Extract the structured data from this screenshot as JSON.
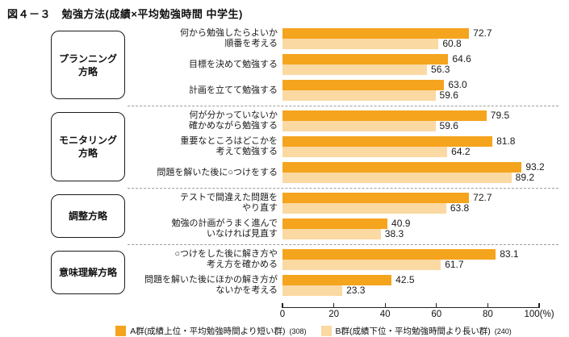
{
  "title": "図４－３　勉強方法(成績×平均勉強時間 中学生)",
  "colors": {
    "series_a": "#F5A41E",
    "series_b": "#FBD9A3",
    "dashed_line": "#9D9D9D"
  },
  "axis": {
    "ticks": [
      "0",
      "20",
      "40",
      "60",
      "80",
      "100(%)"
    ],
    "min": 0,
    "max": 100
  },
  "legend": [
    {
      "label": "A群(成績上位・平均勉強時間より短い群)",
      "count": "(308)",
      "color": "#F5A41E"
    },
    {
      "label": "B群(成績下位・平均勉強時間より長い群)",
      "count": "(240)",
      "color": "#FBD9A3"
    }
  ],
  "groups": [
    {
      "label_lines": [
        "プランニング",
        "方略"
      ],
      "items": [
        {
          "label_lines": [
            "何から勉強したらよいか",
            "順番を考える"
          ],
          "values": {
            "a": "72.7",
            "b": "60.8"
          }
        },
        {
          "label_lines": [
            "目標を決めて勉強する"
          ],
          "values": {
            "a": "64.6",
            "b": "56.3"
          }
        },
        {
          "label_lines": [
            "計画を立てて勉強する"
          ],
          "values": {
            "a": "63.0",
            "b": "59.6"
          }
        }
      ]
    },
    {
      "label_lines": [
        "モニタリング",
        "方略"
      ],
      "items": [
        {
          "label_lines": [
            "何が分かっていないか",
            "確かめながら勉強する"
          ],
          "values": {
            "a": "79.5",
            "b": "59.6"
          }
        },
        {
          "label_lines": [
            "重要なところはどこかを",
            "考えて勉強する"
          ],
          "values": {
            "a": "81.8",
            "b": "64.2"
          }
        },
        {
          "label_lines": [
            "問題を解いた後に○つけをする"
          ],
          "values": {
            "a": "93.2",
            "b": "89.2"
          }
        }
      ]
    },
    {
      "label_lines": [
        "調整方略"
      ],
      "items": [
        {
          "label_lines": [
            "テストで間違えた問題を",
            "やり直す"
          ],
          "values": {
            "a": "72.7",
            "b": "63.8"
          }
        },
        {
          "label_lines": [
            "勉強の計画がうまく進んで",
            "いなければ見直す"
          ],
          "values": {
            "a": "40.9",
            "b": "38.3"
          }
        }
      ]
    },
    {
      "label_lines": [
        "意味理解方略"
      ],
      "items": [
        {
          "label_lines": [
            "○つけをした後に解き方や",
            "考え方を確かめる"
          ],
          "values": {
            "a": "83.1",
            "b": "61.7"
          }
        },
        {
          "label_lines": [
            "問題を解いた後にほかの解き方が",
            "ないかを考える"
          ],
          "values": {
            "a": "42.5",
            "b": "23.3"
          }
        }
      ]
    }
  ],
  "chart_data": {
    "type": "bar",
    "orientation": "horizontal",
    "title": "図４－３　勉強方法(成績×平均勉強時間 中学生)",
    "categories": [
      "何から勉強したらよいか順番を考える",
      "目標を決めて勉強する",
      "計画を立てて勉強する",
      "何が分かっていないか確かめながら勉強する",
      "重要なところはどこかを考えて勉強する",
      "問題を解いた後に○つけをする",
      "テストで間違えた問題をやり直す",
      "勉強の計画がうまく進んでいなければ見直す",
      "○つけをした後に解き方や考え方を確かめる",
      "問題を解いた後にほかの解き方がないかを考える"
    ],
    "category_groups": [
      {
        "name": "プランニング方略",
        "category_indexes": [
          0,
          1,
          2
        ]
      },
      {
        "name": "モニタリング方略",
        "category_indexes": [
          3,
          4,
          5
        ]
      },
      {
        "name": "調整方略",
        "category_indexes": [
          6,
          7
        ]
      },
      {
        "name": "意味理解方略",
        "category_indexes": [
          8,
          9
        ]
      }
    ],
    "series": [
      {
        "name": "A群(成績上位・平均勉強時間より短い群)",
        "n": 308,
        "color": "#F5A41E",
        "values": [
          72.7,
          64.6,
          63.0,
          79.5,
          81.8,
          93.2,
          72.7,
          40.9,
          83.1,
          42.5
        ]
      },
      {
        "name": "B群(成績下位・平均勉強時間より長い群)",
        "n": 240,
        "color": "#FBD9A3",
        "values": [
          60.8,
          56.3,
          59.6,
          59.6,
          64.2,
          89.2,
          63.8,
          38.3,
          61.7,
          23.3
        ]
      }
    ],
    "xlabel": "(%)",
    "xlim": [
      0,
      100
    ],
    "xticks": [
      0,
      20,
      40,
      60,
      80,
      100
    ],
    "grid": false,
    "legend_position": "bottom"
  }
}
